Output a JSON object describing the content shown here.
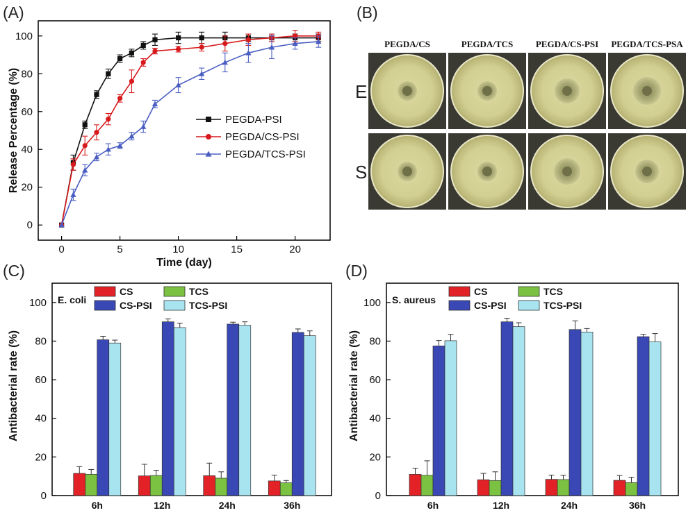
{
  "panel_labels": {
    "A": "(A)",
    "B": "(B)",
    "C": "(C)",
    "D": "(D)"
  },
  "chart_data": [
    {
      "panel": "(A)",
      "type": "line",
      "title": "",
      "xlabel": "Time (day)",
      "ylabel": "Release Percentage (%)",
      "xlim": [
        -2,
        23
      ],
      "ylim": [
        -8,
        108
      ],
      "xticks": [
        0,
        5,
        10,
        15,
        20
      ],
      "yticks": [
        0,
        20,
        40,
        60,
        80,
        100
      ],
      "legend_position": "right",
      "series": [
        {
          "name": "PEGDA-PSI",
          "color": "#111111",
          "marker": "square",
          "x": [
            0,
            1,
            2,
            3,
            4,
            5,
            6,
            7,
            8,
            10,
            12,
            14,
            16,
            18,
            20,
            22
          ],
          "y": [
            0,
            33,
            53,
            69,
            80,
            88,
            91,
            95,
            98,
            99,
            99,
            99,
            99,
            99,
            99,
            99
          ],
          "err": [
            0,
            4,
            2,
            2,
            2.5,
            2,
            2,
            2,
            3,
            3,
            3,
            3,
            2,
            2,
            2,
            2
          ]
        },
        {
          "name": "PEGDA/CS-PSI",
          "color": "#d7191c",
          "marker": "circle",
          "x": [
            0,
            1,
            2,
            3,
            4,
            5,
            6,
            7,
            8,
            10,
            12,
            14,
            16,
            18,
            20,
            22
          ],
          "y": [
            0,
            32,
            42,
            49,
            56,
            67,
            76,
            86,
            92,
            93,
            94,
            96,
            98,
            99,
            100,
            100
          ],
          "err": [
            0,
            3,
            5,
            4,
            3,
            2,
            6,
            2,
            1.5,
            1.5,
            2,
            4,
            3,
            2,
            3,
            2
          ]
        },
        {
          "name": "PEGDA/TCS-PSI",
          "color": "#4a5ec2",
          "marker": "triangle",
          "x": [
            0,
            1,
            2,
            3,
            4,
            5,
            6,
            7,
            8,
            10,
            12,
            14,
            16,
            18,
            20,
            22
          ],
          "y": [
            0,
            16,
            29,
            36,
            40,
            42,
            47,
            52,
            64,
            74,
            80,
            86,
            91,
            94,
            96,
            97
          ],
          "err": [
            0,
            3,
            3,
            2,
            3,
            1.5,
            2,
            3,
            2,
            4,
            3,
            5,
            5,
            6,
            3,
            3
          ]
        }
      ]
    },
    {
      "panel": "(C)",
      "type": "bar",
      "inset_label": "E. coli",
      "xlabel": "",
      "ylabel": "Antibacterial rate (%)",
      "ylim": [
        0,
        110
      ],
      "yticks": [
        0,
        20,
        40,
        60,
        80,
        100
      ],
      "categories": [
        "6h",
        "12h",
        "24h",
        "36h"
      ],
      "legend_position": "top-left",
      "series": [
        {
          "name": "CS",
          "color": "#e32227",
          "values": [
            11.5,
            10.2,
            10.3,
            7.6
          ],
          "err": [
            3.5,
            6,
            6.5,
            3
          ]
        },
        {
          "name": "TCS",
          "color": "#7cc242",
          "values": [
            11.0,
            10.4,
            9.0,
            6.6
          ],
          "err": [
            2.5,
            2.7,
            3.3,
            1.2
          ]
        },
        {
          "name": "CS-PSI",
          "color": "#3a48b5",
          "values": [
            80.7,
            90.0,
            88.8,
            84.5
          ],
          "err": [
            1.8,
            1.5,
            1.0,
            1.8
          ]
        },
        {
          "name": "TCS-PSI",
          "color": "#a8e4f0",
          "values": [
            79.0,
            87.0,
            88.2,
            82.8
          ],
          "err": [
            1.5,
            2.3,
            1.8,
            2.5
          ]
        }
      ]
    },
    {
      "panel": "(D)",
      "type": "bar",
      "inset_label": "S. aureus",
      "xlabel": "",
      "ylabel": "Antibacterial rate (%)",
      "ylim": [
        0,
        110
      ],
      "yticks": [
        0,
        20,
        40,
        60,
        80,
        100
      ],
      "categories": [
        "6h",
        "12h",
        "24h",
        "36h"
      ],
      "legend_position": "top-left",
      "series": [
        {
          "name": "CS",
          "color": "#e32227",
          "values": [
            11.0,
            8.2,
            8.4,
            7.9
          ],
          "err": [
            3.2,
            3.3,
            2.2,
            2.5
          ]
        },
        {
          "name": "TCS",
          "color": "#7cc242",
          "values": [
            10.5,
            7.8,
            8.3,
            6.7
          ],
          "err": [
            7.5,
            4.5,
            2.2,
            2.8
          ]
        },
        {
          "name": "CS-PSI",
          "color": "#3a48b5",
          "values": [
            77.5,
            90.0,
            86.0,
            82.3
          ],
          "err": [
            2.8,
            1.8,
            4.5,
            1.2
          ]
        },
        {
          "name": "TCS-PSI",
          "color": "#a8e4f0",
          "values": [
            80.2,
            87.5,
            84.7,
            79.6
          ],
          "err": [
            3.3,
            2.0,
            1.8,
            4.3
          ]
        }
      ]
    }
  ],
  "plates": {
    "panel": "(B)",
    "columns": [
      "PEGDA/CS",
      "PEGDA/TCS",
      "PEGDA/CS-PSI",
      "PEGDA/TCS-PSA"
    ],
    "rows": [
      "E",
      "S"
    ]
  }
}
